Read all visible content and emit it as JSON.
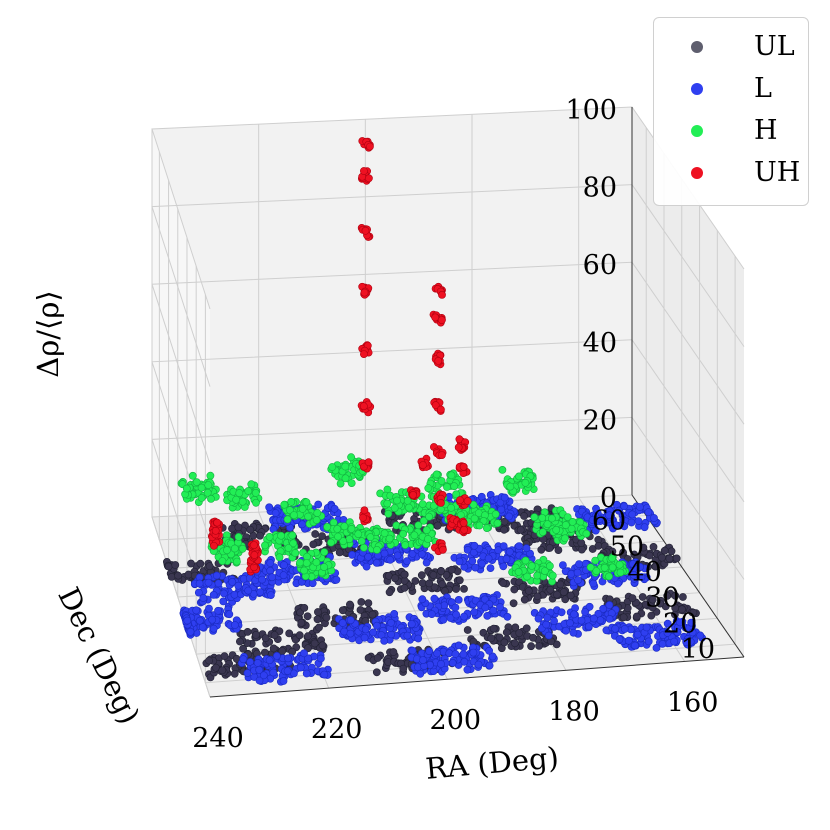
{
  "chart_data": {
    "type": "scatter",
    "title": "",
    "xlabel": "RA (Deg)",
    "ylabel": "Dec (Deg)",
    "zlabel": "Δρ/⟨ρ⟩",
    "xlim": [
      150,
      240
    ],
    "ylim": [
      5,
      68
    ],
    "zlim": [
      0,
      100
    ],
    "x_ticks": [
      "240",
      "220",
      "200",
      "180",
      "160"
    ],
    "y_ticks": [
      "10",
      "20",
      "30",
      "40",
      "50",
      "60"
    ],
    "z_ticks": [
      "0",
      "20",
      "40",
      "60",
      "80",
      "100"
    ],
    "grid": true,
    "legend_position": "top-right",
    "series": [
      {
        "name": "UL",
        "color": "#3a3650",
        "points": [
          [
            232,
            15,
            0.2
          ],
          [
            225,
            22,
            0.3
          ],
          [
            214,
            30,
            0.2
          ],
          [
            205,
            12,
            0.4
          ],
          [
            196,
            40,
            0.3
          ],
          [
            186,
            18,
            0.2
          ],
          [
            176,
            34,
            0.3
          ],
          [
            168,
            52,
            0.4
          ],
          [
            160,
            26,
            0.2
          ],
          [
            236,
            48,
            0.3
          ],
          [
            222,
            60,
            0.2
          ],
          [
            210,
            55,
            0.3
          ],
          [
            190,
            62,
            0.2
          ],
          [
            172,
            60,
            0.3
          ],
          [
            156,
            44,
            0.2
          ]
        ]
      },
      {
        "name": "L",
        "color": "#2f3ff0",
        "points": [
          [
            238,
            30,
            1
          ],
          [
            230,
            40,
            1.5
          ],
          [
            218,
            45,
            1
          ],
          [
            208,
            22,
            2
          ],
          [
            200,
            50,
            1
          ],
          [
            192,
            28,
            1.5
          ],
          [
            182,
            46,
            1
          ],
          [
            174,
            20,
            2
          ],
          [
            164,
            38,
            1
          ],
          [
            156,
            58,
            1.5
          ],
          [
            226,
            12,
            1
          ],
          [
            212,
            64,
            1
          ],
          [
            198,
            10,
            1.5
          ],
          [
            180,
            64,
            1
          ],
          [
            162,
            14,
            1
          ]
        ]
      },
      {
        "name": "H",
        "color": "#22ee55",
        "points": [
          [
            221,
            44,
            9
          ],
          [
            217,
            30,
            14
          ],
          [
            211,
            36,
            17
          ],
          [
            204,
            42,
            11
          ],
          [
            199,
            33,
            17
          ],
          [
            192,
            48,
            13
          ],
          [
            186,
            40,
            16
          ],
          [
            180,
            28,
            10
          ],
          [
            173,
            40,
            13
          ],
          [
            166,
            30,
            8
          ],
          [
            229,
            50,
            4
          ],
          [
            214,
            58,
            7
          ],
          [
            196,
            60,
            7
          ],
          [
            184,
            56,
            5
          ],
          [
            168,
            48,
            6
          ],
          [
            232,
            64,
            10
          ],
          [
            224,
            63,
            8
          ],
          [
            204,
            65,
            12
          ],
          [
            186,
            65,
            7
          ],
          [
            172,
            64,
            8
          ]
        ]
      },
      {
        "name": "UH",
        "color": "#ee1122",
        "points": [
          [
            231,
            52,
            5
          ],
          [
            231,
            52,
            7
          ],
          [
            231,
            52,
            9
          ],
          [
            226,
            42,
            5
          ],
          [
            226,
            42,
            8
          ],
          [
            226,
            42,
            10
          ],
          [
            203,
            55,
            7
          ],
          [
            203,
            55,
            20
          ],
          [
            203,
            55,
            35
          ],
          [
            203,
            55,
            50
          ],
          [
            203,
            55,
            65
          ],
          [
            203,
            55,
            80
          ],
          [
            203,
            55,
            95
          ],
          [
            203,
            55,
            103
          ],
          [
            193,
            42,
            8
          ],
          [
            193,
            42,
            20
          ],
          [
            193,
            42,
            32
          ],
          [
            193,
            42,
            44
          ],
          [
            193,
            42,
            56
          ],
          [
            193,
            42,
            66
          ],
          [
            193,
            42,
            73
          ],
          [
            194,
            48,
            25
          ],
          [
            195,
            52,
            15
          ],
          [
            192,
            36,
            18
          ],
          [
            186,
            52,
            5
          ],
          [
            186,
            52,
            12
          ],
          [
            186,
            52,
            20
          ],
          [
            186,
            52,
            26
          ]
        ]
      }
    ]
  }
}
